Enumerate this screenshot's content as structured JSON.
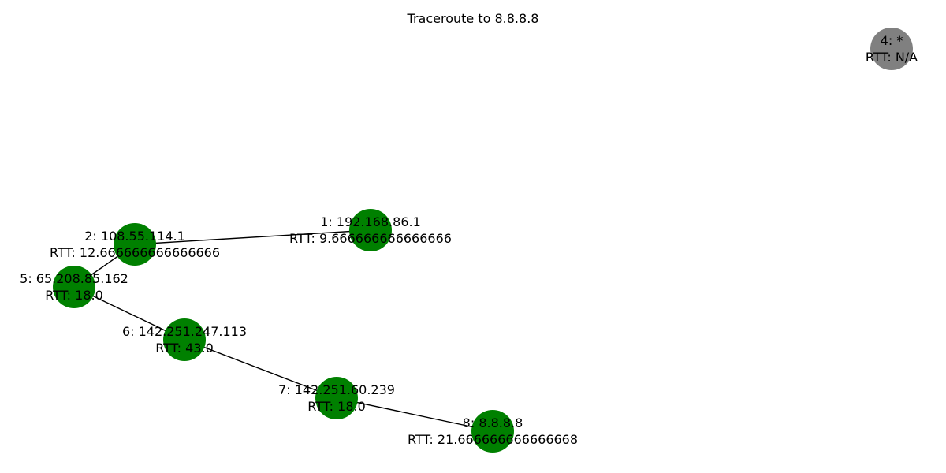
{
  "title": "Traceroute to 8.8.8.8",
  "colors": {
    "responding": "#008000",
    "timeout": "#808080",
    "edge": "#000000"
  },
  "nodes": [
    {
      "id": "1",
      "ip": "192.168.86.1",
      "line1": "1: 192.168.86.1",
      "line2": "RTT: 9.666666666666666",
      "status": "responding"
    },
    {
      "id": "2",
      "ip": "108.55.114.1",
      "line1": "2: 108.55.114.1",
      "line2": "RTT: 12.666666666666666",
      "status": "responding"
    },
    {
      "id": "4",
      "ip": "*",
      "line1": "4: *",
      "line2": "RTT: N/A",
      "status": "timeout"
    },
    {
      "id": "5",
      "ip": "65.208.85.162",
      "line1": "5: 65.208.85.162",
      "line2": "RTT: 18.0",
      "status": "responding"
    },
    {
      "id": "6",
      "ip": "142.251.247.113",
      "line1": "6: 142.251.247.113",
      "line2": "RTT: 43.0",
      "status": "responding"
    },
    {
      "id": "7",
      "ip": "142.251.60.239",
      "line1": "7: 142.251.60.239",
      "line2": "RTT: 18.0",
      "status": "responding"
    },
    {
      "id": "8",
      "ip": "8.8.8.8",
      "line1": "8: 8.8.8.8",
      "line2": "RTT: 21.666666666666668",
      "status": "responding"
    }
  ],
  "edges": [
    {
      "from": "1",
      "to": "2"
    },
    {
      "from": "2",
      "to": "5"
    },
    {
      "from": "5",
      "to": "6"
    },
    {
      "from": "6",
      "to": "7"
    },
    {
      "from": "7",
      "to": "8"
    }
  ]
}
